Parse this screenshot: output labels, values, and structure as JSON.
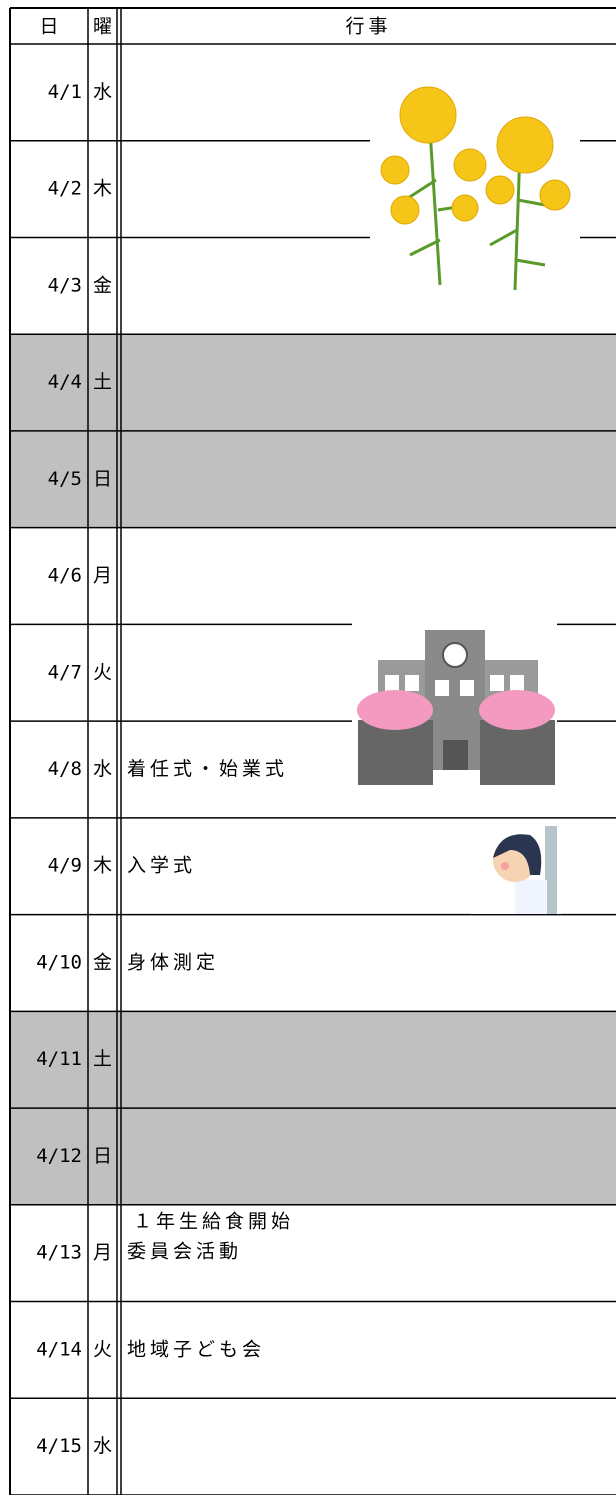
{
  "header": {
    "date": "日",
    "day": "曜",
    "event": "行事"
  },
  "rows": [
    {
      "date": "4/1",
      "day": "水",
      "events": [],
      "shaded": false
    },
    {
      "date": "4/2",
      "day": "木",
      "events": [],
      "shaded": false
    },
    {
      "date": "4/3",
      "day": "金",
      "events": [],
      "shaded": false
    },
    {
      "date": "4/4",
      "day": "土",
      "events": [],
      "shaded": true
    },
    {
      "date": "4/5",
      "day": "日",
      "events": [],
      "shaded": true
    },
    {
      "date": "4/6",
      "day": "月",
      "events": [],
      "shaded": false
    },
    {
      "date": "4/7",
      "day": "火",
      "events": [],
      "shaded": false
    },
    {
      "date": "4/8",
      "day": "水",
      "events": [
        "着任式・始業式"
      ],
      "shaded": false
    },
    {
      "date": "4/9",
      "day": "木",
      "events": [
        "入学式"
      ],
      "shaded": false
    },
    {
      "date": "4/10",
      "day": "金",
      "events": [
        "身体測定"
      ],
      "shaded": false
    },
    {
      "date": "4/11",
      "day": "土",
      "events": [],
      "shaded": true
    },
    {
      "date": "4/12",
      "day": "日",
      "events": [],
      "shaded": true
    },
    {
      "date": "4/13",
      "day": "月",
      "events": [
        "１年生給食開始",
        "委員会活動"
      ],
      "shaded": false
    },
    {
      "date": "4/14",
      "day": "火",
      "events": [
        "地域子ども会"
      ],
      "shaded": false
    },
    {
      "date": "4/15",
      "day": "水",
      "events": [],
      "shaded": false
    }
  ],
  "shade_color": "#c0c0c0"
}
